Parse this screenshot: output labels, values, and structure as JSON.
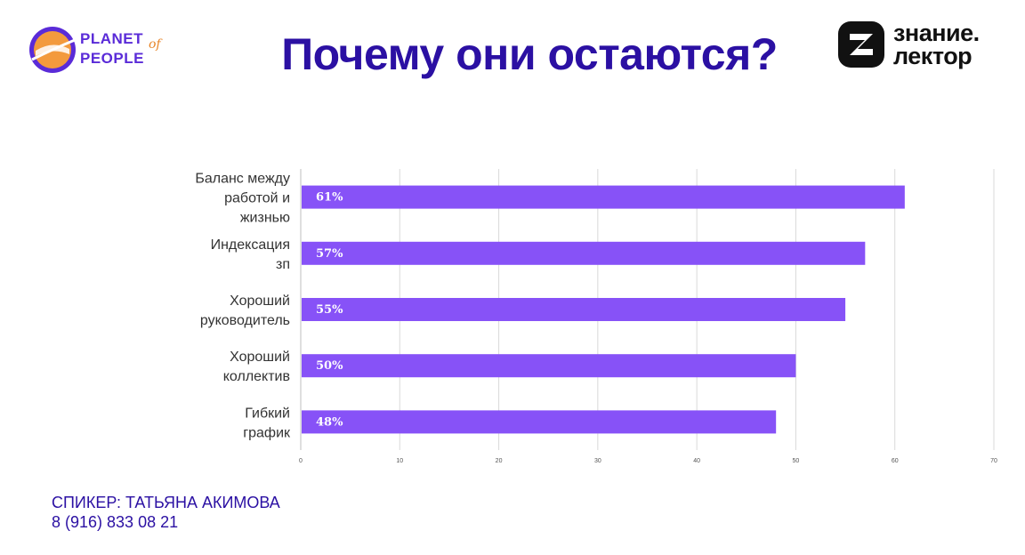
{
  "slide": {
    "title": "Почему они остаются?",
    "speaker_line": "СПИКЕР: ТАТЬЯНА АКИМОВА",
    "phone_line": "8 (916) 833 08 21"
  },
  "logos": {
    "left": {
      "line1": "PLANET",
      "line2": "PEOPLE",
      "of": "of"
    },
    "right": {
      "line1": "знание.",
      "line2": "лектор"
    }
  },
  "colors": {
    "title": "#2b10a3",
    "bar": "#8752f7",
    "grid": "#d9d9d9",
    "axis": "#bfbfbf",
    "logo_orange": "#f08a2c",
    "logo_purple": "#5a2bd8"
  },
  "chart_data": {
    "type": "bar",
    "orientation": "horizontal",
    "categories": [
      [
        "Баланс между",
        "работой и",
        "жизнью"
      ],
      [
        "Индексация",
        "зп"
      ],
      [
        "Хороший",
        "руководитель"
      ],
      [
        "Хороший",
        "коллектив"
      ],
      [
        "Гибкий",
        "график"
      ]
    ],
    "values": [
      61,
      57,
      55,
      50,
      48
    ],
    "data_labels": [
      "61%",
      "57%",
      "55%",
      "50%",
      "48%"
    ],
    "xlim": [
      0,
      70
    ],
    "x_ticks": [
      "0",
      "10",
      "20",
      "30",
      "40",
      "50",
      "60",
      "70"
    ],
    "grid": true,
    "legend": "none"
  }
}
